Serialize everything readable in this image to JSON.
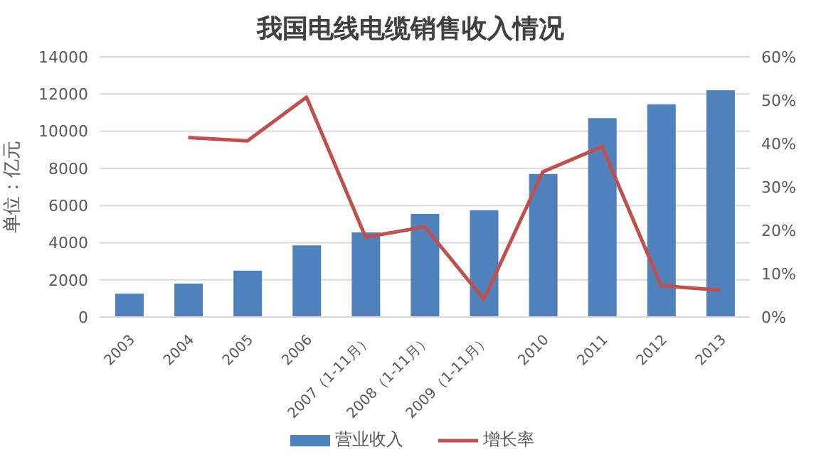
{
  "chart_data": {
    "type": "bar",
    "title": "我国电线电缆销售收入情况",
    "ylabel": "单位：亿元",
    "categories": [
      "2003",
      "2004",
      "2005",
      "2006",
      "2007（1-11月）",
      "2008（1-11月）",
      "2009（1-11月）",
      "2010",
      "2011",
      "2012",
      "2013"
    ],
    "series": [
      {
        "name": "营业收入",
        "color": "#4f81bd",
        "values": [
          1250,
          1800,
          2500,
          3850,
          4550,
          5550,
          5750,
          7700,
          10700,
          11450,
          12200
        ]
      },
      {
        "name": "增长率",
        "type": "line",
        "axis": "y2",
        "color": "#c0504d",
        "values": [
          null,
          41.4,
          40.6,
          50.7,
          18.4,
          20.8,
          4.1,
          33.5,
          39.3,
          7.2,
          6.2
        ]
      }
    ],
    "ylim": [
      0,
      14000
    ],
    "yticks": [
      0,
      2000,
      4000,
      6000,
      8000,
      10000,
      12000,
      14000
    ],
    "y2lim": [
      0,
      60
    ],
    "y2ticks": [
      {
        "value": 0,
        "label": "0%"
      },
      {
        "value": 10,
        "label": "10%"
      },
      {
        "value": 20,
        "label": "20%"
      },
      {
        "value": 30,
        "label": "30%"
      },
      {
        "value": 40,
        "label": "40%"
      },
      {
        "value": 50,
        "label": "50%"
      },
      {
        "value": 60,
        "label": "60%"
      }
    ],
    "grid": "y",
    "legend": "bottom",
    "marker": "none"
  }
}
